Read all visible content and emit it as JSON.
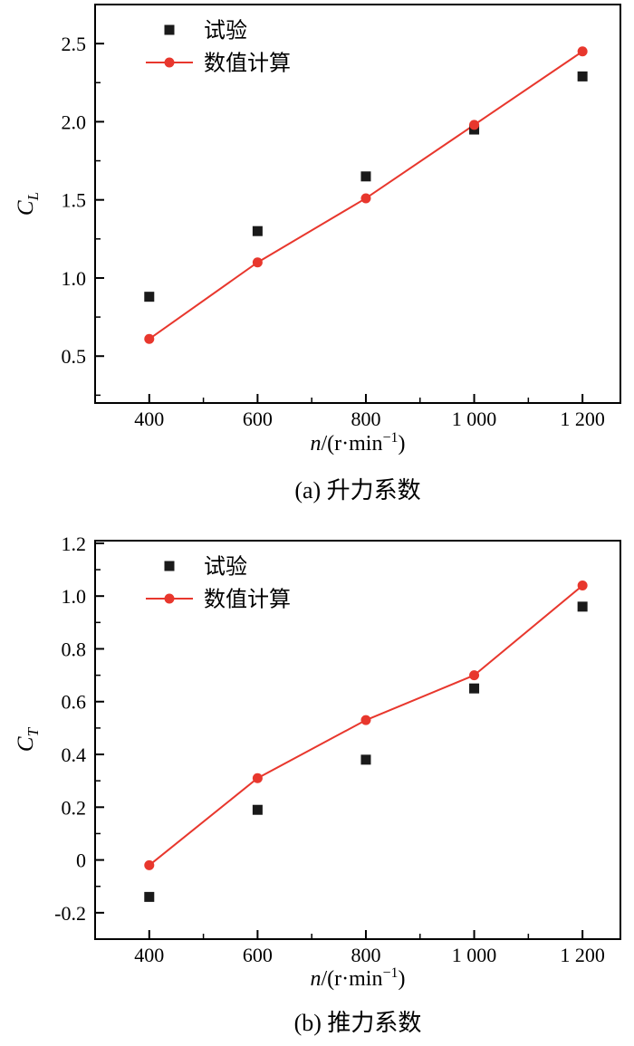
{
  "chart_data": [
    {
      "id": "a",
      "type": "line",
      "caption": "(a) 升力系数",
      "xlabel": {
        "var": "n",
        "pre_sup": "/(r·min",
        "sup": "−1",
        "post_sup": ")"
      },
      "xlabel_text": "n/(r·min−1)",
      "ylabel": {
        "var": "C",
        "sub": "L"
      },
      "x": [
        400,
        600,
        800,
        1000,
        1200
      ],
      "xtick_labels": [
        "400",
        "600",
        "800",
        "1 000",
        "1 200"
      ],
      "xlim": [
        300,
        1270
      ],
      "x_minor": [
        500,
        700,
        900,
        1100
      ],
      "ylim": [
        0.2,
        2.75
      ],
      "yticks": [
        0.5,
        1.0,
        1.5,
        2.0,
        2.5
      ],
      "ytick_labels": [
        "0.5",
        "1.0",
        "1.5",
        "2.0",
        "2.5"
      ],
      "y_minor_step": 0.25,
      "grid": false,
      "legend_position": "top-left",
      "series": [
        {
          "key": "experiment",
          "name": "试验",
          "type": "scatter",
          "marker": "square",
          "color": "#1a1a1a",
          "values": [
            0.88,
            1.3,
            1.65,
            1.95,
            2.29
          ]
        },
        {
          "key": "simulation",
          "name": "数值计算",
          "type": "line+scatter",
          "marker": "circle",
          "color": "#e8372d",
          "values": [
            0.61,
            1.1,
            1.51,
            1.98,
            2.45
          ]
        }
      ]
    },
    {
      "id": "b",
      "type": "line",
      "caption": "(b) 推力系数",
      "xlabel": {
        "var": "n",
        "pre_sup": "/(r·min",
        "sup": "−1",
        "post_sup": ")"
      },
      "xlabel_text": "n/(r·min−1)",
      "ylabel": {
        "var": "C",
        "sub": "T"
      },
      "x": [
        400,
        600,
        800,
        1000,
        1200
      ],
      "xtick_labels": [
        "400",
        "600",
        "800",
        "1 000",
        "1 200"
      ],
      "xlim": [
        300,
        1270
      ],
      "x_minor": [
        500,
        700,
        900,
        1100
      ],
      "ylim": [
        -0.3,
        1.21
      ],
      "yticks": [
        -0.2,
        0,
        0.2,
        0.4,
        0.6,
        0.8,
        1.0,
        1.2
      ],
      "ytick_labels": [
        "-0.2",
        "0",
        "0.2",
        "0.4",
        "0.6",
        "0.8",
        "1.0",
        "1.2"
      ],
      "y_minor_step": 0.1,
      "grid": false,
      "legend_position": "top-left",
      "series": [
        {
          "key": "experiment",
          "name": "试验",
          "type": "scatter",
          "marker": "square",
          "color": "#1a1a1a",
          "values": [
            -0.14,
            0.19,
            0.38,
            0.65,
            0.96
          ]
        },
        {
          "key": "simulation",
          "name": "数值计算",
          "type": "line+scatter",
          "marker": "circle",
          "color": "#e8372d",
          "values": [
            -0.02,
            0.31,
            0.53,
            0.7,
            1.04
          ]
        }
      ]
    }
  ]
}
